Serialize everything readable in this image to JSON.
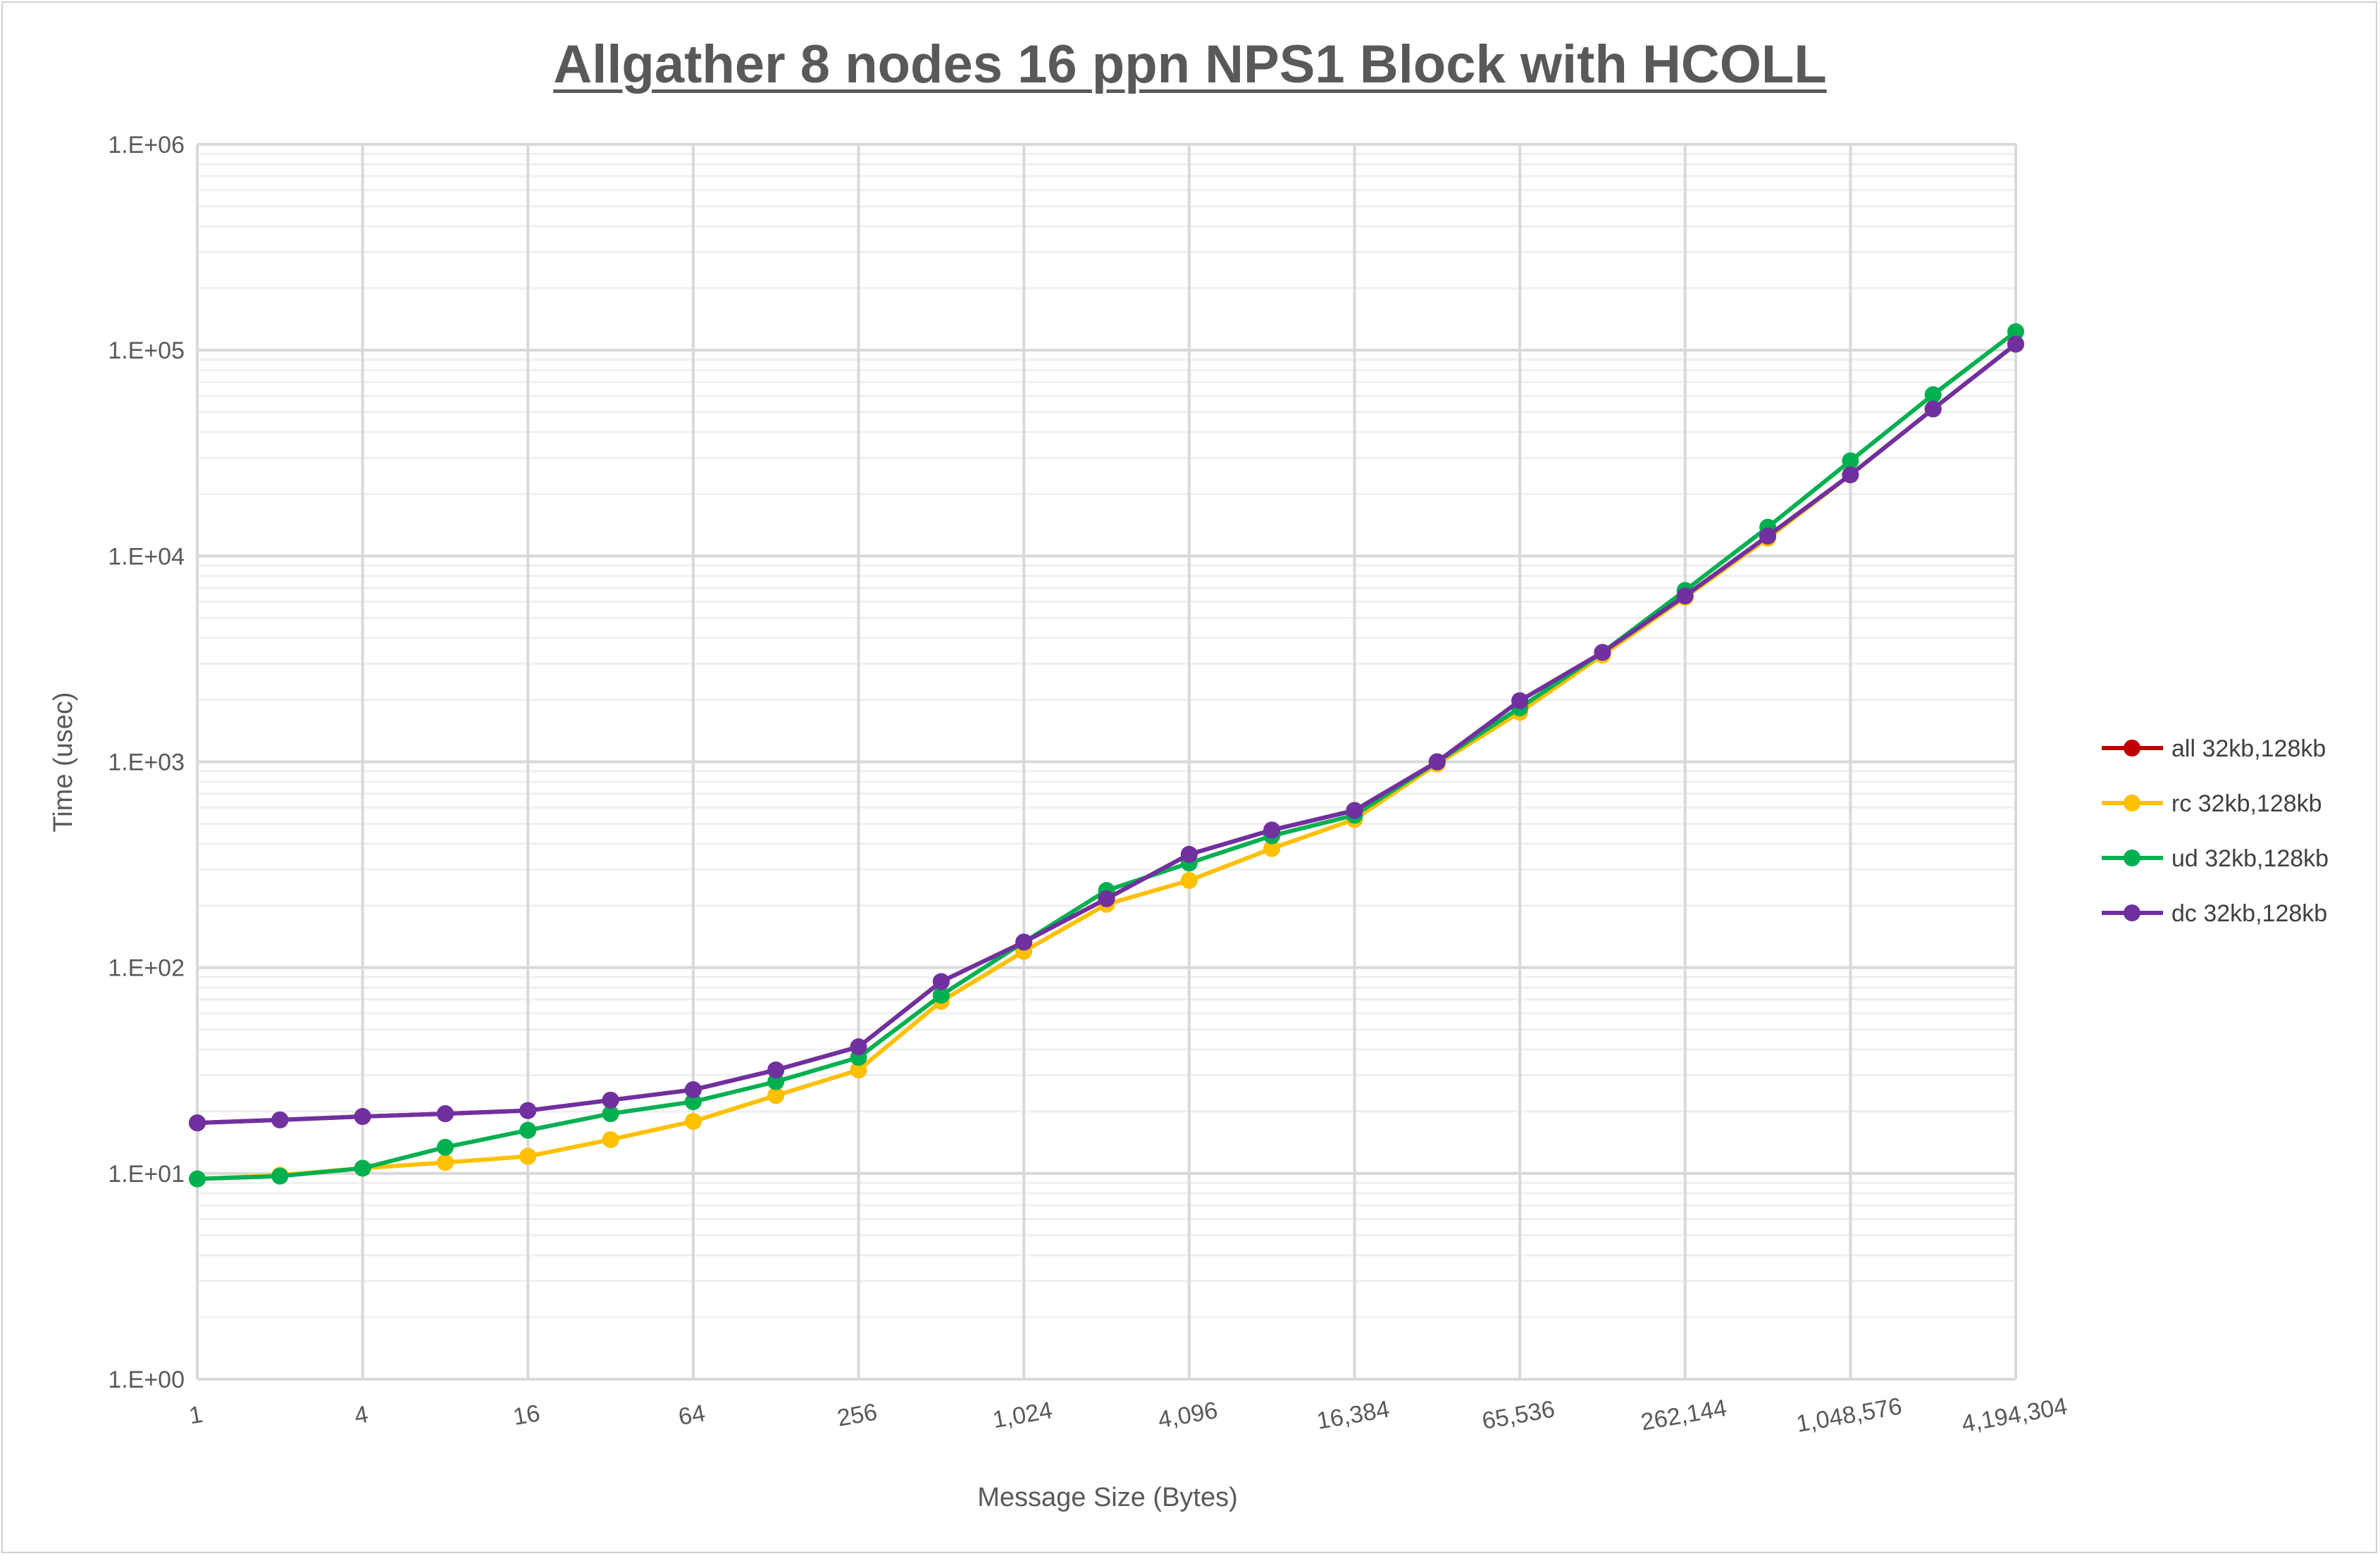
{
  "chart_data": {
    "type": "line",
    "title": "Allgather 8 nodes 16 ppn NPS1 Block with HCOLL",
    "xlabel": "Message Size (Bytes)",
    "ylabel": "Time (usec)",
    "x_scale": "log2",
    "y_scale": "log10",
    "ylim": [
      1,
      1000000
    ],
    "grid": true,
    "legend_position": "right",
    "x": [
      1,
      2,
      4,
      8,
      16,
      32,
      64,
      128,
      256,
      512,
      1024,
      2048,
      4096,
      8192,
      16384,
      32768,
      65536,
      131072,
      262144,
      524288,
      1048576,
      2097152,
      4194304
    ],
    "x_tick_labels": [
      "1",
      "4",
      "16",
      "64",
      "256",
      "1,024",
      "4,096",
      "16,384",
      "65,536",
      "262,144",
      "1,048,576",
      "4,194,304"
    ],
    "y_tick_labels": [
      "1.E+00",
      "1.E+01",
      "1.E+02",
      "1.E+03",
      "1.E+04",
      "1.E+05",
      "1.E+06"
    ],
    "series": [
      {
        "name": "all 32kb,128kb",
        "color": "#c00000",
        "values": [
          17.6,
          18.2,
          18.9,
          19.5,
          20.2,
          22.7,
          25.5,
          31.8,
          41.2,
          85.5,
          133,
          216,
          355,
          466,
          580,
          1000,
          1980,
          3400,
          6400,
          12500,
          24800,
          51800,
          107000
        ]
      },
      {
        "name": "rc 32kb,128kb",
        "color": "#ffc000",
        "values": [
          9.4,
          9.8,
          10.6,
          11.3,
          12.1,
          14.6,
          17.9,
          23.9,
          31.8,
          68.5,
          120,
          203,
          265,
          379,
          525,
          976,
          1740,
          3300,
          6300,
          12200,
          24800,
          51800,
          107000
        ]
      },
      {
        "name": "ud 32kb,128kb",
        "color": "#00b050",
        "values": [
          9.4,
          9.7,
          10.6,
          13.4,
          16.2,
          19.5,
          22.3,
          27.9,
          36.6,
          73.5,
          133,
          237,
          322,
          437,
          550,
          1000,
          1830,
          3400,
          6800,
          13800,
          29000,
          60800,
          123000
        ]
      },
      {
        "name": "dc 32kb,128kb",
        "color": "#7030a0",
        "values": [
          17.6,
          18.2,
          18.9,
          19.5,
          20.2,
          22.7,
          25.5,
          31.8,
          41.2,
          85.5,
          133,
          216,
          355,
          466,
          580,
          1000,
          1980,
          3400,
          6400,
          12500,
          24800,
          51800,
          107000
        ]
      }
    ]
  }
}
